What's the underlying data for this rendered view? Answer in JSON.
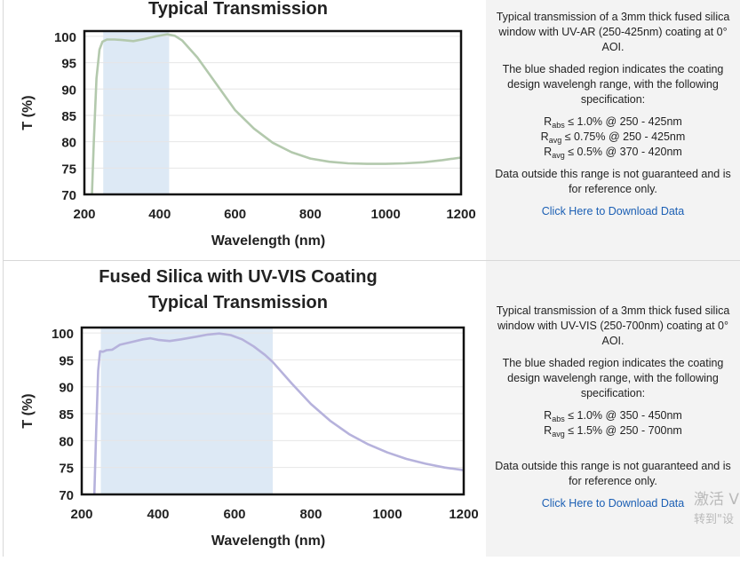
{
  "rows": [
    {
      "chart_title_lines": [
        "Typical Transmission"
      ],
      "description": {
        "intro": "Typical transmission of a 3mm thick fused silica window with UV-AR (250-425nm) coating at 0° AOI.",
        "shaded_note": "The blue shaded region indicates the coating design wavelengh range, with the following specification:",
        "specs": [
          {
            "symbol": "R",
            "sub": "abs",
            "text": "≤ 1.0% @ 250 - 425nm"
          },
          {
            "symbol": "R",
            "sub": "avg",
            "text": "≤ 0.75% @ 250 - 425nm"
          },
          {
            "symbol": "R",
            "sub": "avg",
            "text": "≤ 0.5% @ 370 - 420nm"
          }
        ],
        "disclaimer": "Data outside this range is not guaranteed and is for reference only.",
        "download_label": "Click Here to Download Data"
      }
    },
    {
      "chart_title_lines": [
        "Fused Silica with UV-VIS Coating",
        "Typical Transmission"
      ],
      "description": {
        "intro": "Typical transmission of a 3mm thick fused silica window with UV-VIS (250-700nm) coating at 0° AOI.",
        "shaded_note": "The blue shaded region indicates the coating design wavelengh range, with the following specification:",
        "specs": [
          {
            "symbol": "R",
            "sub": "abs",
            "text": "≤ 1.0% @ 350 - 450nm"
          },
          {
            "symbol": "R",
            "sub": "avg",
            "text": "≤ 1.5% @ 250 - 700nm"
          }
        ],
        "disclaimer": "Data outside this range is not guaranteed and is for reference only.",
        "download_label": "Click Here to Download Data"
      }
    }
  ],
  "watermark": {
    "line1": "激活 V",
    "line2": "转到\"设"
  },
  "colors": {
    "shade": "#dde9f5",
    "line_ar": "#b3c9ad",
    "line_vis": "#b6b2dc",
    "frame": "#111111",
    "grid": "#e6e6e6",
    "link": "#1b5fb4"
  },
  "chart_data": [
    {
      "type": "line",
      "title": "Typical Transmission",
      "xlabel": "Wavelength (nm)",
      "ylabel": "T (%)",
      "xlim": [
        200,
        1200
      ],
      "ylim": [
        70,
        101
      ],
      "xticks": [
        200,
        400,
        600,
        800,
        1000,
        1200
      ],
      "yticks": [
        70,
        75,
        80,
        85,
        90,
        95,
        100
      ],
      "shaded_region": [
        250,
        425
      ],
      "series": [
        {
          "name": "UV-AR (250-425nm)",
          "color": "#b3c9ad",
          "x": [
            220,
            225,
            232,
            240,
            248,
            260,
            280,
            300,
            330,
            360,
            390,
            420,
            440,
            460,
            500,
            550,
            600,
            650,
            700,
            750,
            800,
            850,
            900,
            950,
            1000,
            1050,
            1100,
            1150,
            1200
          ],
          "y": [
            70,
            80,
            92,
            97.5,
            99,
            99.4,
            99.4,
            99.3,
            99.1,
            99.5,
            100,
            100.4,
            100.1,
            99.2,
            96,
            91,
            86,
            82.5,
            79.8,
            78,
            76.8,
            76.2,
            75.9,
            75.8,
            75.8,
            75.9,
            76.1,
            76.5,
            77
          ]
        }
      ],
      "grid": true
    },
    {
      "type": "line",
      "title": "Fused Silica with UV-VIS Coating Typical Transmission",
      "xlabel": "Wavelength (nm)",
      "ylabel": "T (%)",
      "xlim": [
        200,
        1200
      ],
      "ylim": [
        70,
        101
      ],
      "xticks": [
        200,
        400,
        600,
        800,
        1000,
        1200
      ],
      "yticks": [
        70,
        75,
        80,
        85,
        90,
        95,
        100
      ],
      "shaded_region": [
        250,
        700
      ],
      "series": [
        {
          "name": "UV-VIS (250-700nm)",
          "color": "#b6b2dc",
          "x": [
            233,
            238,
            243,
            248,
            255,
            265,
            280,
            300,
            330,
            360,
            380,
            400,
            430,
            460,
            500,
            530,
            560,
            590,
            620,
            650,
            680,
            700,
            750,
            800,
            850,
            900,
            950,
            1000,
            1050,
            1100,
            1150,
            1200
          ],
          "y": [
            70,
            82,
            93,
            96.6,
            96.5,
            96.8,
            96.9,
            97.8,
            98.3,
            98.8,
            99,
            98.7,
            98.5,
            98.8,
            99.3,
            99.7,
            99.9,
            99.6,
            98.8,
            97.5,
            95.9,
            94.6,
            90.6,
            86.8,
            83.7,
            81.2,
            79.3,
            77.8,
            76.6,
            75.7,
            75,
            74.5
          ]
        }
      ],
      "grid": true
    }
  ]
}
